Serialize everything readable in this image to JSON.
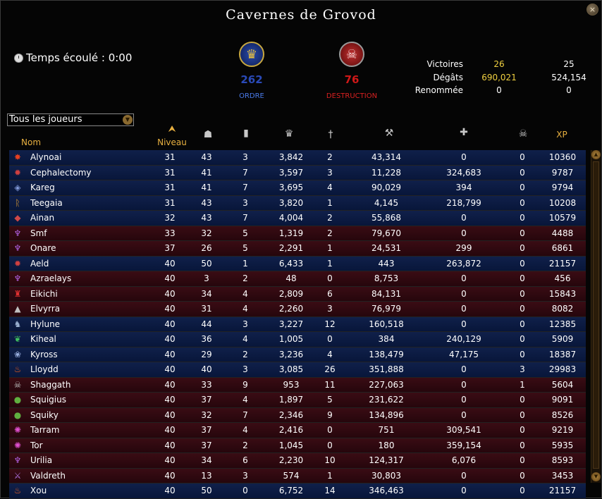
{
  "window": {
    "title": "Cavernes de Grovod",
    "close_glyph": "×"
  },
  "timer": {
    "label": "Temps écoulé : 0:00"
  },
  "factions": {
    "order": {
      "name": "ORDRE",
      "score": "262",
      "color": "#2a4ab8"
    },
    "destruction": {
      "name": "DESTRUCTION",
      "score": "76",
      "color": "#d01818"
    }
  },
  "summary": {
    "rows": [
      {
        "label": "Victoires",
        "order": "26",
        "destruction": "25"
      },
      {
        "label": "Dégâts",
        "order": "690,021",
        "destruction": "524,154"
      },
      {
        "label": "Renommée",
        "order": "0",
        "destruction": "0"
      }
    ]
  },
  "filter": {
    "value": "Tous les joueurs"
  },
  "columns": {
    "name": "Nom",
    "level": "Niveau",
    "xp": "XP",
    "icons": [
      "kills-icon",
      "deaths-icon",
      "renown-icon",
      "deathblows-icon",
      "damage-icon",
      "healing-icon",
      "protection-icon"
    ]
  },
  "players": [
    {
      "name": "Alynoai",
      "faction": "order",
      "career": "hammer-icon",
      "level": "31",
      "kills": "43",
      "deaths": "3",
      "renown": "3,842",
      "db": "2",
      "damage": "43,314",
      "heal": "0",
      "prot": "0",
      "xp": "10360"
    },
    {
      "name": "Cephalectomy",
      "faction": "order",
      "career": "flame-icon",
      "level": "31",
      "kills": "41",
      "deaths": "7",
      "renown": "3,597",
      "db": "3",
      "damage": "11,228",
      "heal": "324,683",
      "prot": "0",
      "xp": "9787"
    },
    {
      "name": "Kareg",
      "faction": "order",
      "career": "helm-icon",
      "level": "31",
      "kills": "41",
      "deaths": "7",
      "renown": "3,695",
      "db": "4",
      "damage": "90,029",
      "heal": "394",
      "prot": "0",
      "xp": "9794"
    },
    {
      "name": "Teegaia",
      "faction": "order",
      "career": "rune-icon",
      "level": "31",
      "kills": "43",
      "deaths": "3",
      "renown": "3,820",
      "db": "1",
      "damage": "4,145",
      "heal": "218,799",
      "prot": "0",
      "xp": "10208"
    },
    {
      "name": "Ainan",
      "faction": "order",
      "career": "shield-icon",
      "level": "32",
      "kills": "43",
      "deaths": "7",
      "renown": "4,004",
      "db": "2",
      "damage": "55,868",
      "heal": "0",
      "prot": "0",
      "xp": "10579"
    },
    {
      "name": "Smf",
      "faction": "destruction",
      "career": "claw-icon",
      "level": "33",
      "kills": "32",
      "deaths": "5",
      "renown": "1,319",
      "db": "2",
      "damage": "79,670",
      "heal": "0",
      "prot": "0",
      "xp": "4488"
    },
    {
      "name": "Onare",
      "faction": "destruction",
      "career": "claw-icon",
      "level": "37",
      "kills": "26",
      "deaths": "5",
      "renown": "2,291",
      "db": "1",
      "damage": "24,531",
      "heal": "299",
      "prot": "0",
      "xp": "6861"
    },
    {
      "name": "Aeld",
      "faction": "order",
      "career": "flame-icon",
      "level": "40",
      "kills": "50",
      "deaths": "1",
      "renown": "6,433",
      "db": "1",
      "damage": "443",
      "heal": "263,872",
      "prot": "0",
      "xp": "21157"
    },
    {
      "name": "Azraelays",
      "faction": "destruction",
      "career": "claw-icon",
      "level": "40",
      "kills": "3",
      "deaths": "2",
      "renown": "48",
      "db": "0",
      "damage": "8,753",
      "heal": "0",
      "prot": "0",
      "xp": "456"
    },
    {
      "name": "Eikichi",
      "faction": "destruction",
      "career": "hat-icon",
      "level": "40",
      "kills": "34",
      "deaths": "4",
      "renown": "2,809",
      "db": "6",
      "damage": "84,131",
      "heal": "0",
      "prot": "0",
      "xp": "15843"
    },
    {
      "name": "Elvyrra",
      "faction": "destruction",
      "career": "cone-icon",
      "level": "40",
      "kills": "31",
      "deaths": "4",
      "renown": "2,260",
      "db": "3",
      "damage": "76,979",
      "heal": "0",
      "prot": "0",
      "xp": "8082"
    },
    {
      "name": "Hylune",
      "faction": "order",
      "career": "elf-icon",
      "level": "40",
      "kills": "44",
      "deaths": "3",
      "renown": "3,227",
      "db": "12",
      "damage": "160,518",
      "heal": "0",
      "prot": "0",
      "xp": "12385"
    },
    {
      "name": "Kiheal",
      "faction": "order",
      "career": "leaf-icon",
      "level": "40",
      "kills": "36",
      "deaths": "4",
      "renown": "1,005",
      "db": "0",
      "damage": "384",
      "heal": "240,129",
      "prot": "0",
      "xp": "5909"
    },
    {
      "name": "Kyross",
      "faction": "order",
      "career": "wings-icon",
      "level": "40",
      "kills": "29",
      "deaths": "2",
      "renown": "3,236",
      "db": "4",
      "damage": "138,479",
      "heal": "47,175",
      "prot": "0",
      "xp": "18387"
    },
    {
      "name": "Lloydd",
      "faction": "order",
      "career": "fire-icon",
      "level": "40",
      "kills": "40",
      "deaths": "3",
      "renown": "3,085",
      "db": "26",
      "damage": "351,888",
      "heal": "0",
      "prot": "3",
      "xp": "29983"
    },
    {
      "name": "Shaggath",
      "faction": "destruction",
      "career": "skull-icon",
      "level": "40",
      "kills": "33",
      "deaths": "9",
      "renown": "953",
      "db": "11",
      "damage": "227,063",
      "heal": "0",
      "prot": "1",
      "xp": "5604"
    },
    {
      "name": "Squigius",
      "faction": "destruction",
      "career": "squig-icon",
      "level": "40",
      "kills": "37",
      "deaths": "4",
      "renown": "1,897",
      "db": "5",
      "damage": "231,622",
      "heal": "0",
      "prot": "0",
      "xp": "9091"
    },
    {
      "name": "Squiky",
      "faction": "destruction",
      "career": "squig-icon",
      "level": "40",
      "kills": "32",
      "deaths": "7",
      "renown": "2,346",
      "db": "9",
      "damage": "134,896",
      "heal": "0",
      "prot": "0",
      "xp": "8526"
    },
    {
      "name": "Tarram",
      "faction": "destruction",
      "career": "tentacle-icon",
      "level": "40",
      "kills": "37",
      "deaths": "4",
      "renown": "2,416",
      "db": "0",
      "damage": "751",
      "heal": "309,541",
      "prot": "0",
      "xp": "9219"
    },
    {
      "name": "Tor",
      "faction": "destruction",
      "career": "tentacle-icon",
      "level": "40",
      "kills": "37",
      "deaths": "2",
      "renown": "1,045",
      "db": "0",
      "damage": "180",
      "heal": "359,154",
      "prot": "0",
      "xp": "5935"
    },
    {
      "name": "Urilia",
      "faction": "destruction",
      "career": "claw-icon",
      "level": "40",
      "kills": "34",
      "deaths": "6",
      "renown": "2,230",
      "db": "10",
      "damage": "124,317",
      "heal": "6,076",
      "prot": "0",
      "xp": "8593"
    },
    {
      "name": "Valdreth",
      "faction": "destruction",
      "career": "blade-icon",
      "level": "40",
      "kills": "13",
      "deaths": "3",
      "renown": "574",
      "db": "1",
      "damage": "30,803",
      "heal": "0",
      "prot": "0",
      "xp": "3453"
    },
    {
      "name": "Xou",
      "faction": "order",
      "career": "fire-icon",
      "level": "40",
      "kills": "50",
      "deaths": "0",
      "renown": "6,752",
      "db": "14",
      "damage": "346,463",
      "heal": "0",
      "prot": "0",
      "xp": "21157"
    }
  ]
}
